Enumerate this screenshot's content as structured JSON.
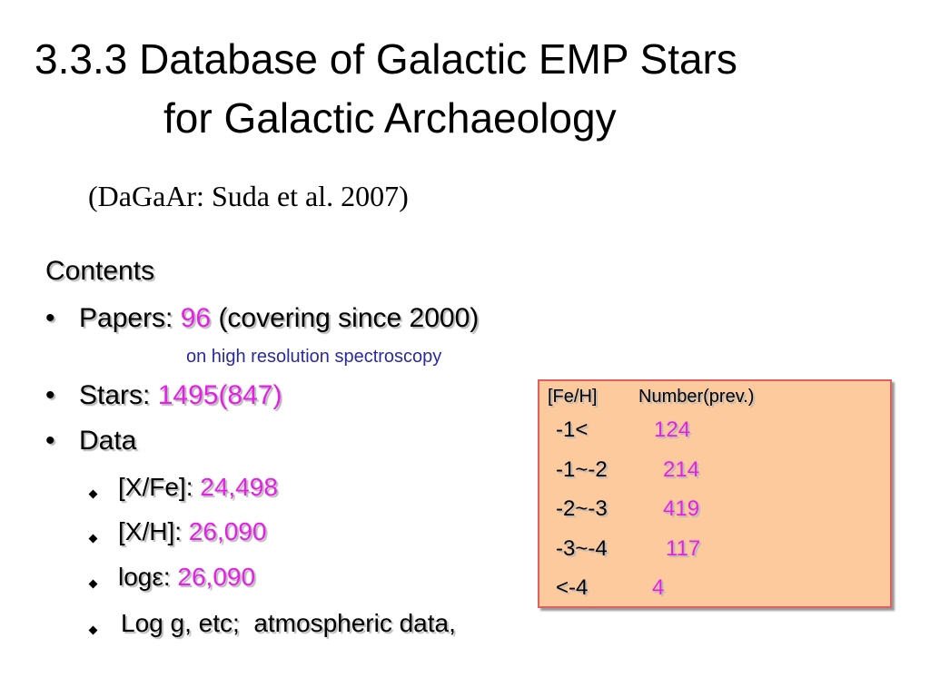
{
  "header": {
    "title_line1": "3.3.3 Database of Galactic EMP Stars",
    "title_line2": "for Galactic Archaeology",
    "subtitle": "(DaGaAr: Suda et al. 2007)"
  },
  "contents": {
    "heading": "Contents",
    "bullets": [
      {
        "label": "Papers: ",
        "value": "96",
        "suffix": " (covering since 2000)",
        "note": "on high resolution spectroscopy"
      },
      {
        "label": "Stars: ",
        "value": "1495(847)"
      },
      {
        "label": "Data"
      }
    ],
    "data_items": [
      {
        "label": "[X/Fe]: ",
        "value": "24,498"
      },
      {
        "label": "[X/H]: ",
        "value": "26,090"
      },
      {
        "label": "logε: ",
        "value": "26,090"
      },
      {
        "label": "Log g, etc;  atmospheric data,"
      }
    ]
  },
  "table": {
    "headers": [
      "[Fe/H]",
      "Number(prev.)"
    ],
    "rows": [
      [
        "-1<",
        124
      ],
      [
        "-1~-2",
        214
      ],
      [
        "-2~-3",
        419
      ],
      [
        "-3~-4",
        117
      ],
      [
        "<-4",
        4
      ]
    ]
  }
}
